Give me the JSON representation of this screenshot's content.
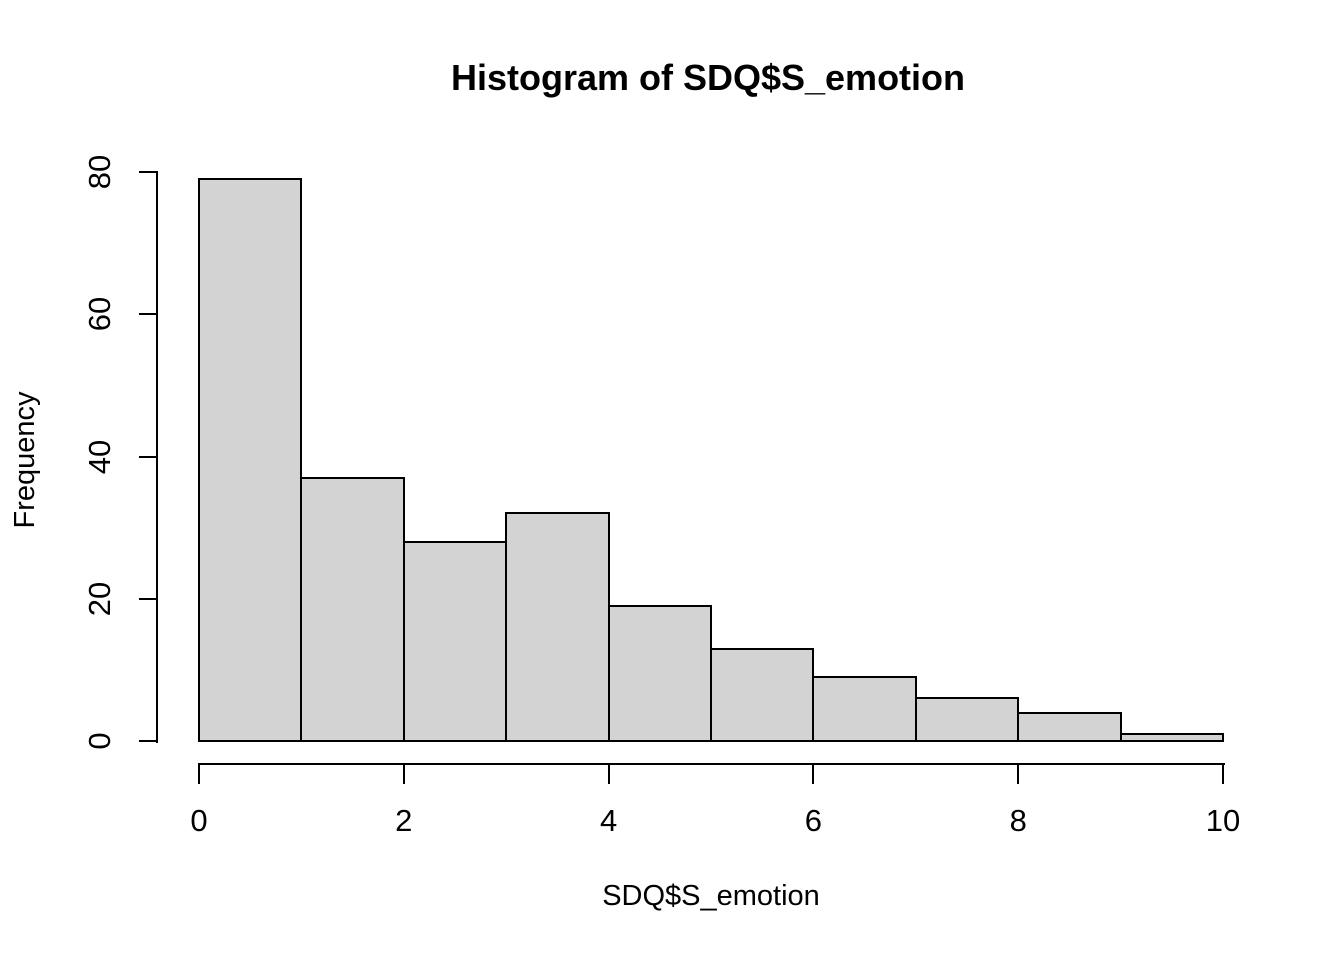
{
  "chart_data": {
    "type": "bar",
    "subtype": "histogram",
    "title": "Histogram of SDQ$S_emotion",
    "xlabel": "SDQ$S_emotion",
    "ylabel": "Frequency",
    "bin_edges": [
      0,
      1,
      2,
      3,
      4,
      5,
      6,
      7,
      8,
      9,
      10
    ],
    "values": [
      79,
      37,
      28,
      32,
      19,
      13,
      9,
      6,
      4,
      1
    ],
    "x_ticks": [
      "0",
      "2",
      "4",
      "6",
      "8",
      "10"
    ],
    "x_tick_values": [
      0,
      2,
      4,
      6,
      8,
      10
    ],
    "y_ticks": [
      "0",
      "20",
      "40",
      "60",
      "80"
    ],
    "y_tick_values": [
      0,
      20,
      40,
      60,
      80
    ],
    "xlim": [
      0,
      10
    ],
    "ylim": [
      0,
      80
    ],
    "grid": "off",
    "legend": "none",
    "bar_fill": "#d3d3d3",
    "bar_border": "#000000",
    "axis_color": "#000000",
    "text_color": "#000000",
    "background": "#ffffff"
  }
}
